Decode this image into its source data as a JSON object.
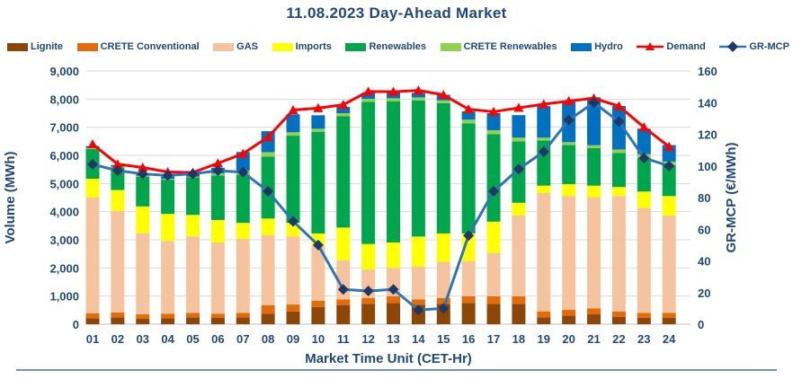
{
  "chart": {
    "title": "11.08.2023  Day-Ahead Market",
    "left_axis_title": "Volume (MWh)",
    "right_axis_title": "GR-MCP (€/MWh)",
    "x_axis_title": "Market Time Unit (CET-Hr)"
  },
  "colors": {
    "text": "#1F497D",
    "grid": "#D9D9D9",
    "axis_line": "#BFBFBF",
    "bottom_divider": "#41719C",
    "lignite": "#8C4606",
    "crete_conventional": "#E36C09",
    "gas": "#F5C49E",
    "imports": "#FFFF00",
    "renewables": "#00A64C",
    "crete_renewables": "#92D050",
    "hydro": "#0070C0",
    "demand": "#FF0000",
    "gr_mcp_line": "#2E75B6",
    "gr_mcp_marker": "#1F3864"
  },
  "legend": [
    {
      "label": "Lignite",
      "swatch": "rect",
      "color": "#8C4606"
    },
    {
      "label": "CRETE Conventional",
      "swatch": "rect",
      "color": "#E36C09"
    },
    {
      "label": "GAS",
      "swatch": "rect",
      "color": "#F5C49E"
    },
    {
      "label": "Imports",
      "swatch": "rect",
      "color": "#FFFF00"
    },
    {
      "label": "Renewables",
      "swatch": "rect",
      "color": "#00A64C"
    },
    {
      "label": "CRETE Renewables",
      "swatch": "rect",
      "color": "#92D050"
    },
    {
      "label": "Hydro",
      "swatch": "rect",
      "color": "#0070C0"
    },
    {
      "label": "Demand",
      "swatch": "line-triangle",
      "color": "#FF0000",
      "marker_color": "#FF0000"
    },
    {
      "label": "GR-MCP",
      "swatch": "line-diamond",
      "color": "#2E75B6",
      "marker_color": "#1F3864"
    }
  ],
  "chart_data": {
    "type": "bar",
    "stacked": true,
    "categories": [
      "01",
      "02",
      "03",
      "04",
      "05",
      "06",
      "07",
      "08",
      "09",
      "10",
      "11",
      "12",
      "13",
      "14",
      "15",
      "16",
      "17",
      "18",
      "19",
      "20",
      "21",
      "22",
      "23",
      "24"
    ],
    "left_axis": {
      "min": 0,
      "max": 9000,
      "step": 1000,
      "tick_labels": [
        "0",
        "1,000",
        "2,000",
        "3,000",
        "4,000",
        "5,000",
        "6,000",
        "7,000",
        "8,000",
        "9,000"
      ]
    },
    "right_axis": {
      "min": 0,
      "max": 160,
      "step": 20,
      "tick_labels": [
        "0",
        "20",
        "40",
        "60",
        "80",
        "100",
        "120",
        "140",
        "160"
      ]
    },
    "series": [
      {
        "name": "Lignite",
        "color_key": "lignite",
        "values": [
          215,
          245,
          190,
          215,
          245,
          225,
          245,
          375,
          450,
          615,
          670,
          725,
          755,
          690,
          725,
          755,
          725,
          725,
          245,
          300,
          350,
          265,
          225,
          225
        ]
      },
      {
        "name": "CRETE Conventional",
        "color_key": "crete_conventional",
        "values": [
          170,
          170,
          160,
          160,
          160,
          150,
          160,
          295,
          250,
          215,
          215,
          210,
          235,
          190,
          210,
          235,
          265,
          265,
          210,
          215,
          215,
          190,
          180,
          180
        ]
      },
      {
        "name": "GAS",
        "color_key": "gas",
        "values": [
          4115,
          3610,
          2875,
          2585,
          2715,
          2530,
          2630,
          2500,
          2420,
          1970,
          1380,
          1010,
          1010,
          1170,
          1280,
          1255,
          1540,
          2875,
          4205,
          4040,
          3935,
          4100,
          3725,
          3460
        ]
      },
      {
        "name": "Imports",
        "color_key": "imports",
        "values": [
          670,
          745,
          960,
          960,
          765,
          800,
          565,
          585,
          480,
          425,
          1170,
          905,
          905,
          1065,
          1010,
          980,
          1115,
          450,
          265,
          425,
          425,
          320,
          585,
          690
        ]
      },
      {
        "name": "Renewables",
        "color_key": "renewables",
        "values": [
          1060,
          800,
          1060,
          1215,
          1335,
          1585,
          1720,
          2200,
          3100,
          3615,
          3960,
          5055,
          5020,
          4840,
          4630,
          3915,
          3110,
          2185,
          1600,
          1385,
          1330,
          1205,
          1190,
          1095
        ]
      },
      {
        "name": "CRETE Renewables",
        "color_key": "crete_renewables",
        "values": [
          30,
          30,
          30,
          30,
          30,
          70,
          140,
          160,
          120,
          105,
          105,
          105,
          105,
          105,
          100,
          130,
          140,
          130,
          105,
          105,
          105,
          130,
          140,
          130
        ]
      },
      {
        "name": "Hydro",
        "color_key": "hydro",
        "values": [
          70,
          60,
          80,
          80,
          80,
          200,
          660,
          745,
          640,
          480,
          225,
          210,
          210,
          160,
          200,
          295,
          605,
          800,
          1120,
          1440,
          1705,
          1545,
          905,
          585
        ]
      }
    ],
    "demand": {
      "name": "Demand",
      "axis": "left",
      "marker": "triangle",
      "values": [
        6400,
        5690,
        5570,
        5410,
        5390,
        5720,
        6060,
        6650,
        7610,
        7680,
        7800,
        8270,
        8260,
        8310,
        8150,
        7640,
        7550,
        7690,
        7820,
        7930,
        8030,
        7750,
        7000,
        6310
      ]
    },
    "gr_mcp": {
      "name": "GR-MCP",
      "axis": "right",
      "marker": "diamond",
      "values": [
        101,
        97,
        95,
        94,
        95,
        97,
        96,
        84,
        65,
        50,
        22,
        21,
        22,
        9,
        10,
        56,
        84,
        98,
        109,
        129,
        140,
        128,
        105,
        100
      ]
    }
  }
}
